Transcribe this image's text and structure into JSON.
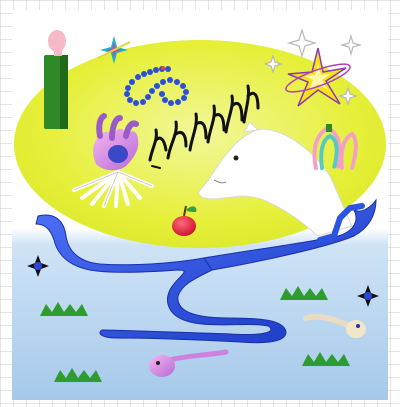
{
  "artwork": {
    "icons": [
      "green-pillar-icon",
      "pink-head-icon",
      "teal-star-icon",
      "blue-bead-scribble-icon",
      "black-squiggle-figures-icon",
      "white-horse-head-icon",
      "yellow-star-icon",
      "sparkle-icon",
      "pink-blue-coil-icon",
      "hand-sculpture-icon",
      "fan-sticks-icon",
      "red-apple-icon",
      "blue-river-icon",
      "black-star-icon",
      "grass-tuft-icon",
      "pink-tadpole-icon",
      "cream-tadpole-icon"
    ],
    "colors": {
      "background_white": "#ffffff",
      "grid_line": "#c8c8c8",
      "sky_blue": "#a9cdec",
      "oval_yellow": "#e8f23a",
      "river_blue": "#2b54e0",
      "grass_green": "#2e9c2e",
      "pillar_green": "#2f8a25",
      "apple_red": "#e01f3a"
    }
  }
}
